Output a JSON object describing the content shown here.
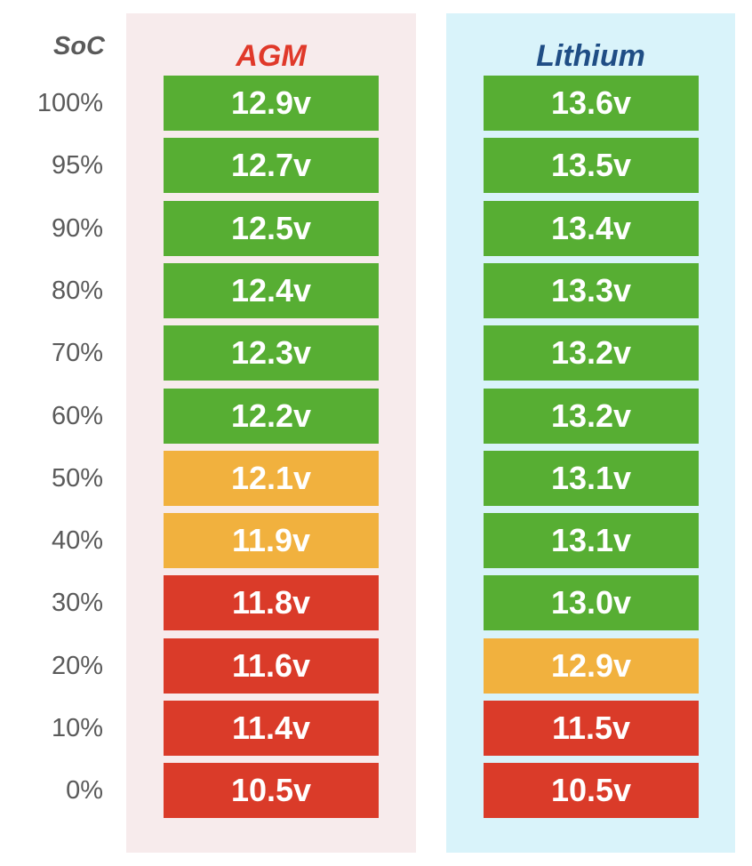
{
  "chart_data": {
    "type": "table",
    "row_header": "SoC",
    "columns": [
      {
        "name": "AGM",
        "color": "#e0392a"
      },
      {
        "name": "Lithium",
        "color": "#1f4d85"
      }
    ],
    "soc_labels": [
      "100%",
      "95%",
      "90%",
      "80%",
      "70%",
      "60%",
      "50%",
      "40%",
      "30%",
      "20%",
      "10%",
      "0%"
    ],
    "soc_values": [
      100,
      95,
      90,
      80,
      70,
      60,
      50,
      40,
      30,
      20,
      10,
      0
    ],
    "agm_labels": [
      "12.9v",
      "12.7v",
      "12.5v",
      "12.4v",
      "12.3v",
      "12.2v",
      "12.1v",
      "11.9v",
      "11.8v",
      "11.6v",
      "11.4v",
      "10.5v"
    ],
    "agm_values": [
      12.9,
      12.7,
      12.5,
      12.4,
      12.3,
      12.2,
      12.1,
      11.9,
      11.8,
      11.6,
      11.4,
      10.5
    ],
    "agm_status": [
      "good",
      "good",
      "good",
      "good",
      "good",
      "good",
      "warn",
      "warn",
      "bad",
      "bad",
      "bad",
      "bad"
    ],
    "lithium_labels": [
      "13.6v",
      "13.5v",
      "13.4v",
      "13.3v",
      "13.2v",
      "13.2v",
      "13.1v",
      "13.1v",
      "13.0v",
      "12.9v",
      "11.5v",
      "10.5v"
    ],
    "lithium_values": [
      13.6,
      13.5,
      13.4,
      13.3,
      13.2,
      13.2,
      13.1,
      13.1,
      13.0,
      12.9,
      11.5,
      10.5
    ],
    "lithium_status": [
      "good",
      "good",
      "good",
      "good",
      "good",
      "good",
      "good",
      "good",
      "good",
      "warn",
      "bad",
      "bad"
    ]
  },
  "colors": {
    "good": "#57ae33",
    "warn": "#f1b13e",
    "bad": "#da3b29",
    "agm_panel": "#f7ebec",
    "lithium_panel": "#d9f3fa",
    "soc_text": "#5a5a5a"
  }
}
